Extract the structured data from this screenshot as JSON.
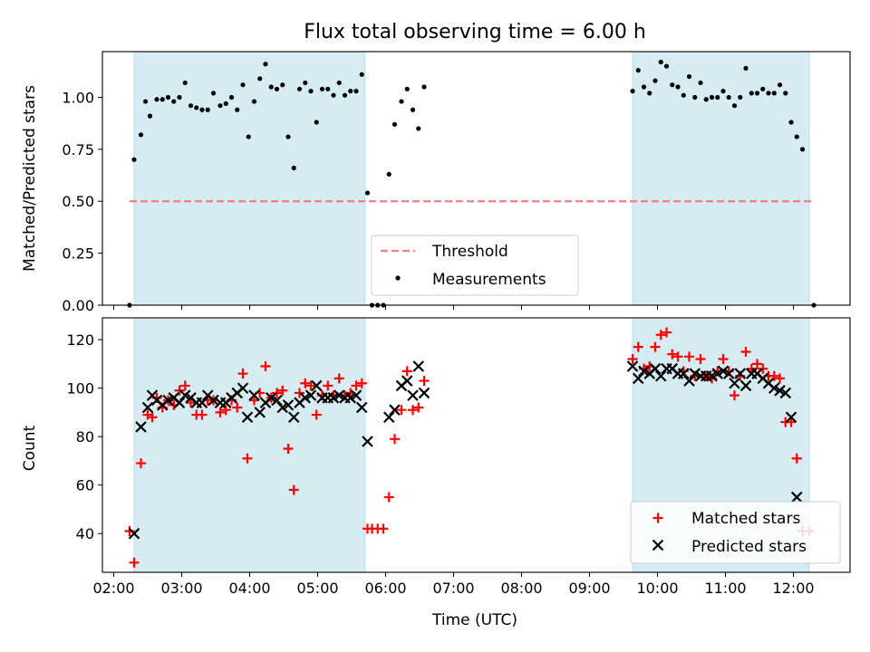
{
  "chart_data": [
    {
      "type": "scatter",
      "title": "Flux total observing time = 6.00 h",
      "xlabel": "",
      "ylabel": "Matched/Predicted stars",
      "ylim": [
        0,
        1.22
      ],
      "yticks": [
        "0.00",
        "0.25",
        "0.50",
        "0.75",
        "1.00"
      ],
      "xlim": [
        "01:50",
        "12:50"
      ],
      "xtick_labels_shown": false,
      "grid": false,
      "shaded_intervals": [
        [
          "02:18",
          "05:42"
        ],
        [
          "09:38",
          "12:14"
        ]
      ],
      "threshold": {
        "name": "Threshold",
        "value": 0.5,
        "x": [
          "02:14",
          "12:18"
        ],
        "color": "#f08080",
        "style": "dashed"
      },
      "legend": {
        "position": "lower-center",
        "entries": [
          "Threshold",
          "Measurements"
        ]
      },
      "series": [
        {
          "name": "Measurements",
          "color": "#000000",
          "marker": "dot",
          "points": [
            [
              "02:14",
              0.0
            ],
            [
              "02:18",
              0.7
            ],
            [
              "02:24",
              0.82
            ],
            [
              "02:28",
              0.98
            ],
            [
              "02:32",
              0.91
            ],
            [
              "02:38",
              0.99
            ],
            [
              "02:43",
              0.99
            ],
            [
              "02:48",
              1.0
            ],
            [
              "02:53",
              0.98
            ],
            [
              "02:58",
              1.0
            ],
            [
              "03:03",
              1.07
            ],
            [
              "03:08",
              0.96
            ],
            [
              "03:13",
              0.95
            ],
            [
              "03:18",
              0.94
            ],
            [
              "03:23",
              0.94
            ],
            [
              "03:28",
              1.02
            ],
            [
              "03:34",
              0.96
            ],
            [
              "03:39",
              0.97
            ],
            [
              "03:44",
              1.0
            ],
            [
              "03:49",
              0.94
            ],
            [
              "03:54",
              1.06
            ],
            [
              "03:59",
              0.81
            ],
            [
              "04:04",
              0.98
            ],
            [
              "04:09",
              1.09
            ],
            [
              "04:14",
              1.16
            ],
            [
              "04:19",
              1.05
            ],
            [
              "04:24",
              1.04
            ],
            [
              "04:29",
              1.06
            ],
            [
              "04:34",
              0.81
            ],
            [
              "04:39",
              0.66
            ],
            [
              "04:44",
              1.04
            ],
            [
              "04:49",
              1.07
            ],
            [
              "04:54",
              1.03
            ],
            [
              "04:59",
              0.88
            ],
            [
              "05:04",
              1.04
            ],
            [
              "05:09",
              1.04
            ],
            [
              "05:14",
              1.01
            ],
            [
              "05:19",
              1.07
            ],
            [
              "05:24",
              1.01
            ],
            [
              "05:29",
              1.03
            ],
            [
              "05:34",
              1.03
            ],
            [
              "05:39",
              1.11
            ],
            [
              "05:44",
              0.54
            ],
            [
              "05:48",
              0.0
            ],
            [
              "05:53",
              0.0
            ],
            [
              "05:58",
              0.0
            ],
            [
              "06:03",
              0.63
            ],
            [
              "06:08",
              0.87
            ],
            [
              "06:14",
              0.98
            ],
            [
              "06:19",
              1.04
            ],
            [
              "06:24",
              0.94
            ],
            [
              "06:29",
              0.85
            ],
            [
              "06:34",
              1.05
            ],
            [
              "09:38",
              1.03
            ],
            [
              "09:43",
              1.13
            ],
            [
              "09:48",
              1.05
            ],
            [
              "09:53",
              1.02
            ],
            [
              "09:58",
              1.08
            ],
            [
              "10:03",
              1.17
            ],
            [
              "10:08",
              1.15
            ],
            [
              "10:13",
              1.06
            ],
            [
              "10:18",
              1.05
            ],
            [
              "10:23",
              1.01
            ],
            [
              "10:28",
              1.1
            ],
            [
              "10:33",
              1.0
            ],
            [
              "10:38",
              1.07
            ],
            [
              "10:43",
              0.99
            ],
            [
              "10:48",
              1.0
            ],
            [
              "10:53",
              1.0
            ],
            [
              "10:58",
              1.03
            ],
            [
              "11:03",
              1.0
            ],
            [
              "11:08",
              0.96
            ],
            [
              "11:13",
              1.0
            ],
            [
              "11:18",
              1.14
            ],
            [
              "11:23",
              1.02
            ],
            [
              "11:28",
              1.02
            ],
            [
              "11:33",
              1.04
            ],
            [
              "11:38",
              1.02
            ],
            [
              "11:43",
              1.02
            ],
            [
              "11:48",
              1.06
            ],
            [
              "11:53",
              1.02
            ],
            [
              "11:58",
              0.88
            ],
            [
              "12:03",
              0.81
            ],
            [
              "12:08",
              0.75
            ],
            [
              "12:18",
              0.0
            ]
          ]
        }
      ]
    },
    {
      "type": "scatter",
      "title": "",
      "xlabel": "Time (UTC)",
      "ylabel": "Count",
      "ylim": [
        24,
        129
      ],
      "yticks": [
        "40",
        "60",
        "80",
        "100",
        "120"
      ],
      "xlim": [
        "01:50",
        "12:50"
      ],
      "xticks": [
        "02:00",
        "03:00",
        "04:00",
        "05:00",
        "06:00",
        "07:00",
        "08:00",
        "09:00",
        "10:00",
        "11:00",
        "12:00"
      ],
      "grid": false,
      "shaded_intervals": [
        [
          "02:18",
          "05:42"
        ],
        [
          "09:38",
          "12:14"
        ]
      ],
      "legend": {
        "position": "bottom-right",
        "entries": [
          "Matched stars",
          "Predicted stars"
        ]
      },
      "series": [
        {
          "name": "Matched stars",
          "color": "#ff0000",
          "marker": "plus",
          "points": [
            [
              "02:14",
              41
            ],
            [
              "02:18",
              28
            ],
            [
              "02:24",
              69
            ],
            [
              "02:30",
              89
            ],
            [
              "02:34",
              88
            ],
            [
              "02:38",
              96
            ],
            [
              "02:43",
              92
            ],
            [
              "02:48",
              95
            ],
            [
              "02:53",
              93
            ],
            [
              "02:58",
              99
            ],
            [
              "03:03",
              101
            ],
            [
              "03:08",
              94
            ],
            [
              "03:13",
              89
            ],
            [
              "03:18",
              89
            ],
            [
              "03:23",
              95
            ],
            [
              "03:28",
              95
            ],
            [
              "03:34",
              90
            ],
            [
              "03:39",
              91
            ],
            [
              "03:44",
              95
            ],
            [
              "03:49",
              92
            ],
            [
              "03:54",
              106
            ],
            [
              "03:58",
              71
            ],
            [
              "04:04",
              95
            ],
            [
              "04:09",
              98
            ],
            [
              "04:14",
              109
            ],
            [
              "04:19",
              96
            ],
            [
              "04:24",
              98
            ],
            [
              "04:29",
              99
            ],
            [
              "04:34",
              75
            ],
            [
              "04:39",
              58
            ],
            [
              "04:44",
              98
            ],
            [
              "04:49",
              102
            ],
            [
              "04:54",
              101
            ],
            [
              "04:59",
              89
            ],
            [
              "05:04",
              97
            ],
            [
              "05:09",
              101
            ],
            [
              "05:14",
              97
            ],
            [
              "05:19",
              104
            ],
            [
              "05:24",
              97
            ],
            [
              "05:29",
              98
            ],
            [
              "05:34",
              101
            ],
            [
              "05:39",
              102
            ],
            [
              "05:44",
              42
            ],
            [
              "05:48",
              42
            ],
            [
              "05:53",
              42
            ],
            [
              "05:58",
              42
            ],
            [
              "06:03",
              55
            ],
            [
              "06:08",
              79
            ],
            [
              "06:14",
              91
            ],
            [
              "06:19",
              107
            ],
            [
              "06:24",
              91
            ],
            [
              "06:29",
              92
            ],
            [
              "06:34",
              103
            ],
            [
              "09:38",
              112
            ],
            [
              "09:43",
              117
            ],
            [
              "09:48",
              108
            ],
            [
              "09:53",
              109
            ],
            [
              "09:58",
              117
            ],
            [
              "10:03",
              122
            ],
            [
              "10:08",
              123
            ],
            [
              "10:13",
              114
            ],
            [
              "10:18",
              113
            ],
            [
              "10:23",
              107
            ],
            [
              "10:28",
              113
            ],
            [
              "10:33",
              105
            ],
            [
              "10:38",
              112
            ],
            [
              "10:43",
              105
            ],
            [
              "10:48",
              104
            ],
            [
              "10:53",
              107
            ],
            [
              "10:58",
              112
            ],
            [
              "11:03",
              107
            ],
            [
              "11:08",
              97
            ],
            [
              "11:13",
              105
            ],
            [
              "11:18",
              115
            ],
            [
              "11:23",
              108
            ],
            [
              "11:28",
              110
            ],
            [
              "11:33",
              108
            ],
            [
              "11:38",
              105
            ],
            [
              "11:43",
              105
            ],
            [
              "11:48",
              104
            ],
            [
              "11:53",
              86
            ],
            [
              "11:58",
              86
            ],
            [
              "12:03",
              71
            ],
            [
              "12:08",
              41
            ],
            [
              "12:14",
              41
            ]
          ]
        },
        {
          "name": "Predicted stars",
          "color": "#000000",
          "marker": "x",
          "points": [
            [
              "02:18",
              40
            ],
            [
              "02:24",
              84
            ],
            [
              "02:30",
              92
            ],
            [
              "02:34",
              97
            ],
            [
              "02:38",
              95
            ],
            [
              "02:43",
              93
            ],
            [
              "02:48",
              95
            ],
            [
              "02:53",
              96
            ],
            [
              "02:58",
              94
            ],
            [
              "03:03",
              97
            ],
            [
              "03:08",
              96
            ],
            [
              "03:13",
              94
            ],
            [
              "03:18",
              94
            ],
            [
              "03:23",
              97
            ],
            [
              "03:28",
              95
            ],
            [
              "03:34",
              94
            ],
            [
              "03:39",
              94
            ],
            [
              "03:44",
              96
            ],
            [
              "03:49",
              98
            ],
            [
              "03:54",
              100
            ],
            [
              "03:58",
              88
            ],
            [
              "04:04",
              97
            ],
            [
              "04:09",
              90
            ],
            [
              "04:14",
              94
            ],
            [
              "04:19",
              96
            ],
            [
              "04:24",
              95
            ],
            [
              "04:29",
              92
            ],
            [
              "04:34",
              93
            ],
            [
              "04:39",
              88
            ],
            [
              "04:44",
              94
            ],
            [
              "04:49",
              96
            ],
            [
              "04:54",
              97
            ],
            [
              "04:59",
              101
            ],
            [
              "05:04",
              96
            ],
            [
              "05:09",
              96
            ],
            [
              "05:14",
              96
            ],
            [
              "05:19",
              97
            ],
            [
              "05:24",
              96
            ],
            [
              "05:29",
              96
            ],
            [
              "05:34",
              97
            ],
            [
              "05:39",
              92
            ],
            [
              "05:44",
              78
            ],
            [
              "06:03",
              88
            ],
            [
              "06:08",
              91
            ],
            [
              "06:14",
              101
            ],
            [
              "06:19",
              103
            ],
            [
              "06:24",
              97
            ],
            [
              "06:29",
              109
            ],
            [
              "06:34",
              98
            ],
            [
              "09:38",
              109
            ],
            [
              "09:43",
              104
            ],
            [
              "09:48",
              107
            ],
            [
              "09:53",
              106
            ],
            [
              "09:58",
              108
            ],
            [
              "10:03",
              105
            ],
            [
              "10:08",
              108
            ],
            [
              "10:13",
              108
            ],
            [
              "10:18",
              106
            ],
            [
              "10:23",
              106
            ],
            [
              "10:28",
              103
            ],
            [
              "10:33",
              106
            ],
            [
              "10:38",
              105
            ],
            [
              "10:43",
              105
            ],
            [
              "10:48",
              105
            ],
            [
              "10:53",
              106
            ],
            [
              "10:58",
              107
            ],
            [
              "11:03",
              106
            ],
            [
              "11:08",
              102
            ],
            [
              "11:13",
              106
            ],
            [
              "11:18",
              101
            ],
            [
              "11:23",
              106
            ],
            [
              "11:28",
              106
            ],
            [
              "11:33",
              104
            ],
            [
              "11:38",
              102
            ],
            [
              "11:43",
              100
            ],
            [
              "11:48",
              99
            ],
            [
              "11:53",
              98
            ],
            [
              "11:58",
              88
            ],
            [
              "12:03",
              55
            ]
          ]
        }
      ]
    }
  ]
}
